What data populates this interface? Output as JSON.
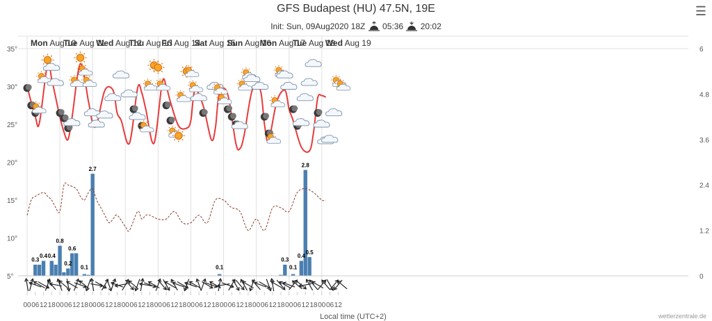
{
  "title": "GFS Budapest (HU) 47.5N, 19E",
  "subtitle": {
    "init": "Init: Sun, 09Aug2020 18Z",
    "sunrise": "05:36",
    "sunset": "20:02"
  },
  "credit": "wetterzentrale.de",
  "colors": {
    "temperature": "#e83a3a",
    "dewpoint": "#8b3a2b",
    "precip": "#4a7fb0",
    "grid": "#e0e0e0"
  },
  "chart_data": {
    "type": "line",
    "xlabel": "Local time (UTC+2)",
    "day_labels": [
      "Mon Aug 10",
      "Tue Aug 11",
      "Wed Aug 12",
      "Thu Aug 13",
      "Fri Aug 14",
      "Sat Aug 15",
      "Sun Aug 16",
      "Mon Aug 17",
      "Tue Aug 18",
      "Wed Aug 19"
    ],
    "hour_ticks": [
      "00",
      "06",
      "12",
      "18",
      "00",
      "06",
      "12",
      "18",
      "00",
      "06",
      "12",
      "18",
      "00",
      "06",
      "12",
      "18",
      "00",
      "06",
      "12",
      "18",
      "00",
      "06",
      "12",
      "18",
      "00",
      "06",
      "12",
      "18",
      "00",
      "06",
      "12",
      "18",
      "00",
      "06",
      "12",
      "18",
      "00",
      "06",
      "12"
    ],
    "y_left": {
      "min": 5,
      "max": 35,
      "ticks": [
        "5°",
        "10°",
        "15°",
        "20°",
        "25°",
        "30°",
        "35°"
      ]
    },
    "y_right": {
      "min": 0,
      "max": 6,
      "ticks": [
        "0",
        "1.2",
        "2.4",
        "3.6",
        "4.8",
        "6"
      ]
    },
    "temperature_series": {
      "name": "Temperature",
      "x_hours": [
        0,
        6,
        9,
        15,
        18,
        21,
        24,
        27,
        30,
        33,
        39,
        45,
        48,
        51,
        57,
        63,
        66,
        69,
        75,
        81,
        84,
        87,
        93,
        99,
        102,
        105,
        111,
        117,
        120,
        123,
        129,
        135,
        138,
        141,
        147,
        153,
        156,
        159,
        165,
        171,
        174,
        177,
        183,
        189,
        192,
        195,
        201,
        207,
        210,
        213,
        216,
        219
      ],
      "values": [
        30,
        26,
        25.2,
        33,
        31,
        28.5,
        26,
        24,
        23,
        26,
        33,
        28,
        25.2,
        25,
        29.5,
        29.5,
        26.5,
        25.5,
        22.5,
        29.8,
        29.2,
        27,
        22.5,
        30.5,
        30,
        28,
        24.8,
        24.5,
        25.5,
        29.5,
        27.5,
        23,
        24.5,
        29.2,
        29,
        22.5,
        21.8,
        23.5,
        29.5,
        29.5,
        25,
        22.8,
        28,
        29.5,
        27,
        25.5,
        22,
        21.5,
        24,
        28.5,
        28.8,
        28.6
      ]
    },
    "dewpoint_series": {
      "name": "Dew point",
      "x_hours": [
        0,
        3,
        6,
        12,
        15,
        18,
        21,
        24,
        27,
        30,
        36,
        39,
        42,
        45,
        48,
        51,
        54,
        57,
        60,
        63,
        66,
        72,
        75,
        81,
        84,
        87,
        90,
        96,
        102,
        108,
        114,
        120,
        126,
        132,
        138,
        144,
        147,
        150,
        156,
        162,
        168,
        174,
        180,
        186,
        192,
        198,
        204,
        210,
        216,
        219
      ],
      "values": [
        13,
        15,
        15.5,
        16,
        15.5,
        15,
        14,
        13.5,
        17,
        17,
        16.5,
        15.5,
        15,
        16,
        16.5,
        15,
        14,
        13,
        12,
        12.5,
        13,
        11.5,
        11,
        13.5,
        12.5,
        13,
        13,
        12.5,
        12.5,
        13.5,
        12,
        12,
        13,
        12,
        15,
        15,
        14.5,
        14,
        13.5,
        11,
        12.5,
        11,
        14,
        14,
        13.5,
        16,
        16.5,
        16,
        15,
        15
      ]
    },
    "precip_series": {
      "name": "Precipitation",
      "bars": [
        {
          "x": 6,
          "value": 0.3
        },
        {
          "x": 9,
          "value": 0.3
        },
        {
          "x": 12,
          "value": 0.4
        },
        {
          "x": 18,
          "value": 0.4
        },
        {
          "x": 21,
          "value": 0.3
        },
        {
          "x": 24,
          "value": 0.8
        },
        {
          "x": 27,
          "value": 0.1
        },
        {
          "x": 30,
          "value": 0.2
        },
        {
          "x": 33,
          "value": 0.6
        },
        {
          "x": 36,
          "value": 0.6
        },
        {
          "x": 42,
          "value": 0.05
        },
        {
          "x": 45,
          "value": 0.03
        },
        {
          "x": 48,
          "value": 2.7
        },
        {
          "x": 141,
          "value": 0.05
        },
        {
          "x": 186,
          "value": 0.03
        },
        {
          "x": 189,
          "value": 0.3
        },
        {
          "x": 195,
          "value": 0.05
        },
        {
          "x": 201,
          "value": 0.4
        },
        {
          "x": 204,
          "value": 2.8
        },
        {
          "x": 207,
          "value": 0.5
        }
      ],
      "data_labels": [
        {
          "x": 6,
          "text": "0.3"
        },
        {
          "x": 12,
          "text": "0.4"
        },
        {
          "x": 18,
          "text": "0.4"
        },
        {
          "x": 24,
          "text": "0.8"
        },
        {
          "x": 30,
          "text": "0.2"
        },
        {
          "x": 33,
          "text": "0.6"
        },
        {
          "x": 42,
          "text": "0.1"
        },
        {
          "x": 48,
          "text": "2.7"
        },
        {
          "x": 141,
          "text": "0.1"
        },
        {
          "x": 189,
          "text": "0.3"
        },
        {
          "x": 195,
          "text": "0.1"
        },
        {
          "x": 201,
          "text": "0.4"
        },
        {
          "x": 204,
          "text": "2.8"
        },
        {
          "x": 207,
          "text": "0.5"
        }
      ]
    },
    "weather_icons": [
      {
        "x": 0,
        "t": 29.8,
        "icon": "moon-icon"
      },
      {
        "x": 3,
        "t": 27.5,
        "icon": "moon-icon"
      },
      {
        "x": 6,
        "t": 26.5,
        "icon": "moon-icon"
      },
      {
        "x": 8,
        "t": 27,
        "icon": "partly-cloudy-icon"
      },
      {
        "x": 12,
        "t": 31,
        "icon": "partly-cloudy-icon"
      },
      {
        "x": 15,
        "t": 33.5,
        "icon": "sun-icon"
      },
      {
        "x": 18,
        "t": 32.5,
        "icon": "cloud-icon"
      },
      {
        "x": 21,
        "t": 30.5,
        "icon": "cloud-icon"
      },
      {
        "x": 24,
        "t": 26.5,
        "icon": "moon-icon"
      },
      {
        "x": 27,
        "t": 25.8,
        "icon": "moon-icon"
      },
      {
        "x": 30,
        "t": 24.5,
        "icon": "moon-icon"
      },
      {
        "x": 33,
        "t": 25.2,
        "icon": "cloud-icon"
      },
      {
        "x": 36,
        "t": 30.5,
        "icon": "partly-cloudy-icon"
      },
      {
        "x": 39,
        "t": 33.8,
        "icon": "sun-icon"
      },
      {
        "x": 42,
        "t": 32,
        "icon": "partly-cloudy-icon"
      },
      {
        "x": 45,
        "t": 30.5,
        "icon": "partly-cloudy-icon"
      },
      {
        "x": 48,
        "t": 26.5,
        "icon": "cloud-icon"
      },
      {
        "x": 51,
        "t": 25,
        "icon": "cloud-icon"
      },
      {
        "x": 57,
        "t": 26.2,
        "icon": "cloud-icon"
      },
      {
        "x": 63,
        "t": 28.5,
        "icon": "cloud-icon"
      },
      {
        "x": 69,
        "t": 31.5,
        "icon": "cloud-icon"
      },
      {
        "x": 75,
        "t": 29,
        "icon": "cloud-icon"
      },
      {
        "x": 78,
        "t": 27,
        "icon": "moon-icon"
      },
      {
        "x": 81,
        "t": 26,
        "icon": "cloud-icon"
      },
      {
        "x": 84,
        "t": 24.8,
        "icon": "moon-icon"
      },
      {
        "x": 87,
        "t": 24.5,
        "icon": "partly-cloudy-icon"
      },
      {
        "x": 90,
        "t": 30,
        "icon": "partly-cloudy-icon"
      },
      {
        "x": 93,
        "t": 32.8,
        "icon": "sun-icon"
      },
      {
        "x": 96,
        "t": 32.5,
        "icon": "sun-icon"
      },
      {
        "x": 99,
        "t": 30,
        "icon": "partly-cloudy-icon"
      },
      {
        "x": 102,
        "t": 27.5,
        "icon": "moon-icon"
      },
      {
        "x": 105,
        "t": 25.5,
        "icon": "moon-icon"
      },
      {
        "x": 108,
        "t": 23.8,
        "icon": "partly-cloudy-icon"
      },
      {
        "x": 111,
        "t": 23.5,
        "icon": "sun-icon"
      },
      {
        "x": 114,
        "t": 28.5,
        "icon": "partly-cloudy-icon"
      },
      {
        "x": 117,
        "t": 32,
        "icon": "sun-icon"
      },
      {
        "x": 120,
        "t": 31.8,
        "icon": "partly-cloudy-icon"
      },
      {
        "x": 123,
        "t": 29.8,
        "icon": "partly-cloudy-icon"
      },
      {
        "x": 126,
        "t": 28.5,
        "icon": "cloud-icon"
      },
      {
        "x": 129,
        "t": 26.5,
        "icon": "moon-icon"
      },
      {
        "x": 138,
        "t": 30,
        "icon": "cloud-icon"
      },
      {
        "x": 141,
        "t": 29.5,
        "icon": "partly-cloudy-icon"
      },
      {
        "x": 144,
        "t": 28.2,
        "icon": "partly-cloudy-icon"
      },
      {
        "x": 147,
        "t": 27,
        "icon": "moon-icon"
      },
      {
        "x": 150,
        "t": 26,
        "icon": "moon-icon"
      },
      {
        "x": 153,
        "t": 25,
        "icon": "moon-icon"
      },
      {
        "x": 156,
        "t": 24.8,
        "icon": "cloud-icon"
      },
      {
        "x": 159,
        "t": 30,
        "icon": "partly-cloudy-icon"
      },
      {
        "x": 162,
        "t": 31.5,
        "icon": "partly-cloudy-icon"
      },
      {
        "x": 165,
        "t": 31,
        "icon": "cloud-icon"
      },
      {
        "x": 171,
        "t": 30,
        "icon": "cloud-icon"
      },
      {
        "x": 174,
        "t": 26,
        "icon": "moon-icon"
      },
      {
        "x": 177,
        "t": 23.8,
        "icon": "moon-icon"
      },
      {
        "x": 180,
        "t": 23,
        "icon": "partly-cloudy-icon"
      },
      {
        "x": 183,
        "t": 27.8,
        "icon": "partly-cloudy-icon"
      },
      {
        "x": 186,
        "t": 31.8,
        "icon": "partly-cloudy-icon"
      },
      {
        "x": 189,
        "t": 31.5,
        "icon": "cloud-icon"
      },
      {
        "x": 192,
        "t": 30,
        "icon": "cloud-icon"
      },
      {
        "x": 195,
        "t": 27,
        "icon": "moon-icon"
      },
      {
        "x": 198,
        "t": 24.8,
        "icon": "moon-icon"
      },
      {
        "x": 201,
        "t": 25.2,
        "icon": "cloud-icon"
      },
      {
        "x": 204,
        "t": 28.5,
        "icon": "cloud-icon"
      },
      {
        "x": 207,
        "t": 30.5,
        "icon": "cloud-icon"
      },
      {
        "x": 210,
        "t": 33,
        "icon": "cloud-icon"
      },
      {
        "x": 213,
        "t": 26.5,
        "icon": "moon-icon"
      },
      {
        "x": 216,
        "t": 25,
        "icon": "cloud-icon"
      },
      {
        "x": 219,
        "t": 22.8,
        "icon": "cloud-icon"
      },
      {
        "x": 222,
        "t": 23,
        "icon": "cloud-icon"
      },
      {
        "x": 225,
        "t": 26.5,
        "icon": "cloud-icon"
      },
      {
        "x": 228,
        "t": 30.5,
        "icon": "partly-cloudy-icon"
      },
      {
        "x": 231,
        "t": 30,
        "icon": "partly-cloudy-icon"
      }
    ],
    "wind_arrows_deg": [
      350,
      15,
      290,
      300,
      120,
      20,
      320,
      280,
      340,
      310,
      170,
      300,
      20,
      110,
      310,
      200,
      350,
      100,
      120,
      30,
      160,
      20,
      290,
      260,
      30,
      140,
      310,
      200,
      10,
      280,
      110,
      300,
      20,
      140,
      150,
      300,
      330,
      290,
      120,
      200,
      290,
      300,
      340,
      20,
      120,
      110,
      300,
      10,
      260,
      110,
      30,
      150,
      140,
      330,
      300,
      200,
      320,
      290,
      120,
      160,
      350,
      300,
      140,
      300,
      290,
      40,
      310,
      130,
      260,
      330,
      320,
      300,
      40,
      320,
      150,
      40,
      220,
      310
    ]
  }
}
